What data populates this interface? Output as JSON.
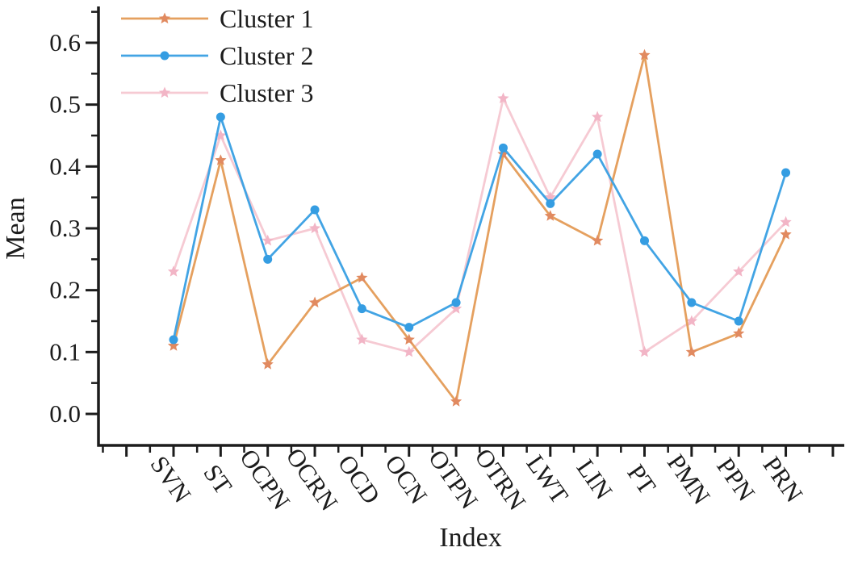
{
  "figure": {
    "background": "#ffffff",
    "axis_color": "#1c1c1c"
  },
  "chart_data": {
    "type": "line",
    "title": "",
    "xlabel": "Index",
    "ylabel": "Mean",
    "categories": [
      "SVN",
      "ST",
      "OCPN",
      "OCRN",
      "OCD",
      "OCN",
      "OTPN",
      "OTRN",
      "LWT",
      "LIN",
      "PT",
      "PMN",
      "PPN",
      "PRN"
    ],
    "series": [
      {
        "name": "Cluster 1",
        "marker": "star",
        "line_color": "#E5A05F",
        "marker_color": "#E18A60",
        "values": [
          0.11,
          0.41,
          0.08,
          0.18,
          0.22,
          0.12,
          0.02,
          0.42,
          0.32,
          0.28,
          0.58,
          0.1,
          0.13,
          0.29
        ]
      },
      {
        "name": "Cluster 2",
        "marker": "circle",
        "line_color": "#42A4E4",
        "marker_color": "#359DE2",
        "values": [
          0.12,
          0.48,
          0.25,
          0.33,
          0.17,
          0.14,
          0.18,
          0.43,
          0.34,
          0.42,
          0.28,
          0.18,
          0.15,
          0.39
        ]
      },
      {
        "name": "Cluster 3",
        "marker": "star",
        "line_color": "#F6CAD3",
        "marker_color": "#F2B5C6",
        "values": [
          0.23,
          0.45,
          0.28,
          0.3,
          0.12,
          0.1,
          0.17,
          0.51,
          0.35,
          0.48,
          0.1,
          0.15,
          0.23,
          0.31
        ]
      }
    ],
    "ylim": [
      0.0,
      0.6
    ],
    "ytick_step": 0.1,
    "yticks": [
      "0.0",
      "0.1",
      "0.2",
      "0.3",
      "0.4",
      "0.5",
      "0.6"
    ],
    "grid": false,
    "legend_position": "top-left"
  }
}
